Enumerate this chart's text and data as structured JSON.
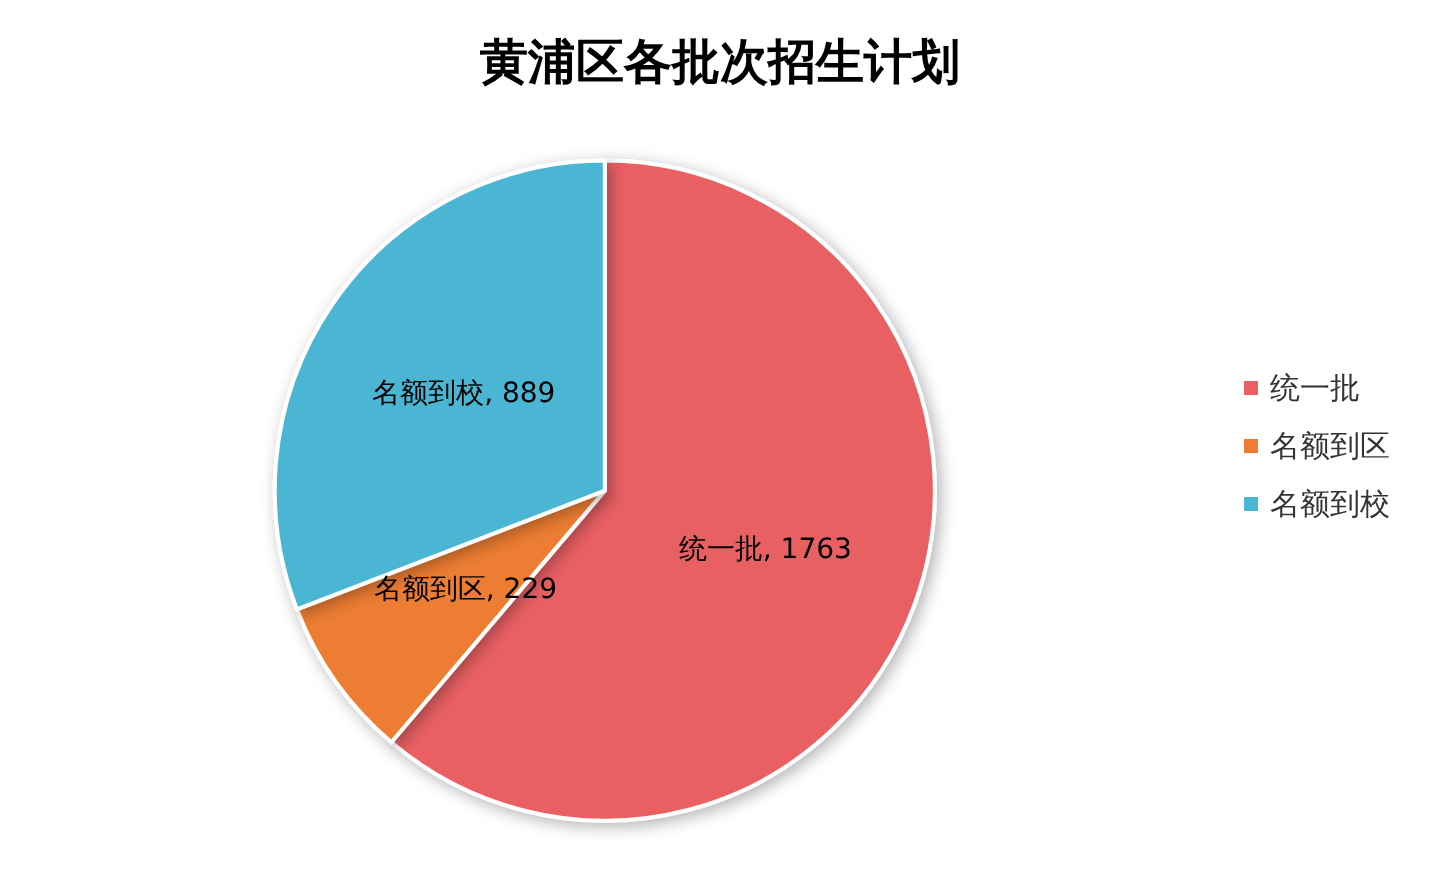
{
  "chart_data": {
    "type": "pie",
    "title": "黄浦区各批次招生计划",
    "categories": [
      "统一批",
      "名额到区",
      "名额到校"
    ],
    "values": [
      1763,
      229,
      889
    ],
    "colors": [
      "#e96063",
      "#ed7d31",
      "#4bb6d3"
    ],
    "value_labels": [
      ", 1763",
      ", 229",
      ", 889"
    ],
    "legend": "right"
  }
}
